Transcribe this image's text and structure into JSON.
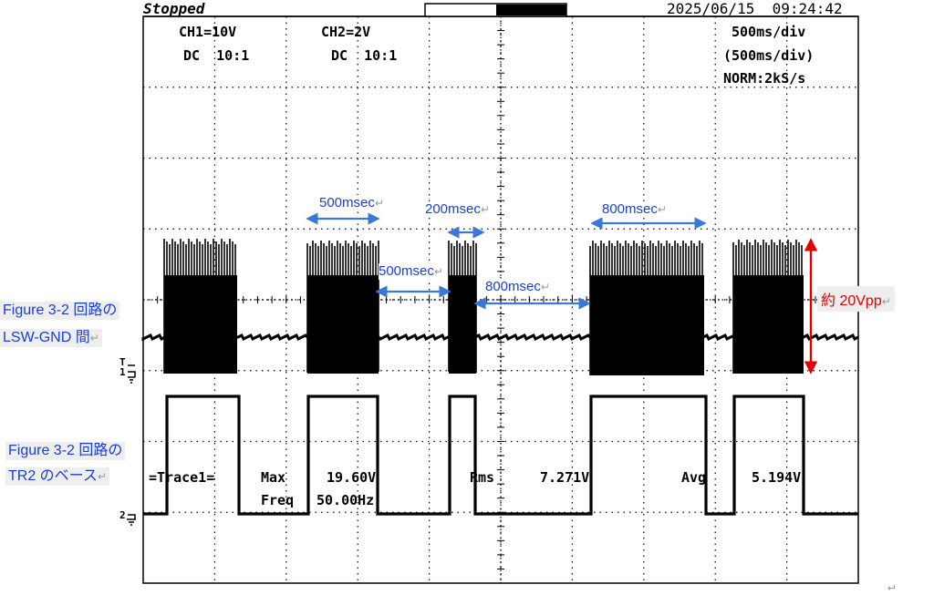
{
  "header": {
    "status": "Stopped",
    "datetime": "2025/06/15  09:24:42"
  },
  "channels": {
    "ch1_label": "CH1=10V",
    "ch1_coupling": "DC  10:1",
    "ch2_label": "CH2=2V",
    "ch2_coupling": "DC  10:1"
  },
  "timebase": {
    "div": "500ms/div",
    "div_paren": "(500ms/div)",
    "mode": "NORM:2kS/s"
  },
  "measurements": {
    "trace_label": "=Trace1=",
    "max_label": "Max",
    "max_value": "19.60V",
    "freq_label": "Freq",
    "freq_value": "50.00Hz",
    "rms_label": "Rms",
    "rms_value": "7.271V",
    "avg_label": "Avg",
    "avg_value": "5.194V"
  },
  "markers": {
    "ch1": "1",
    "ch2": "2",
    "trigger": "T"
  },
  "annotations": {
    "lsw_line1": "Figure 3-2 回路の",
    "lsw_line2": "LSW-GND 間",
    "tr2_line1": "Figure 3-2 回路の",
    "tr2_line2": "TR2 のベース",
    "vpp": "約 20Vpp",
    "return_mark": "↵"
  },
  "durations": {
    "d1": "500msec",
    "d2": "200msec",
    "d3": "800msec",
    "d4": "500msec",
    "d5": "800msec"
  },
  "colors": {
    "trace": "#000000",
    "annotation": "#1a3fd0",
    "measure_arrow": "#3a78d8",
    "vpp_arrow": "#e00000",
    "grid": "#000000"
  }
}
